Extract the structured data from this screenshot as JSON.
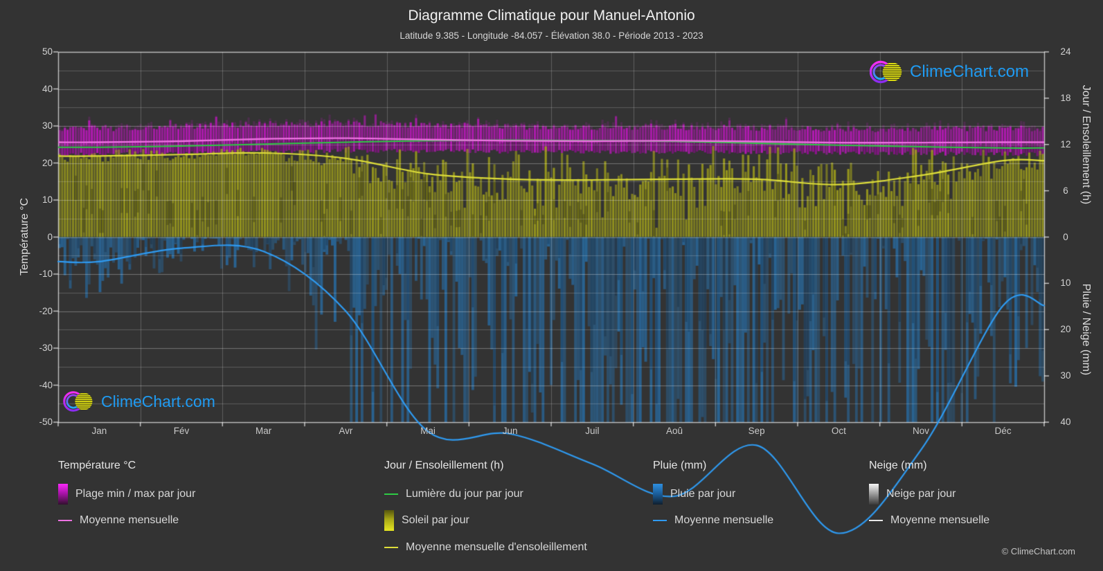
{
  "title": "Diagramme Climatique pour Manuel-Antonio",
  "subtitle": "Latitude 9.385 - Longitude -84.057 - Élévation 38.0 - Période 2013 - 2023",
  "branding": {
    "logo_text": "ClimeChart.com",
    "copyright": "© ClimeChart.com"
  },
  "axes": {
    "left": {
      "label": "Température °C",
      "ticks": [
        "50",
        "40",
        "30",
        "20",
        "10",
        "0",
        "-10",
        "-20",
        "-30",
        "-40",
        "-50"
      ]
    },
    "right_day": {
      "label": "Jour / Ensoleillement (h)",
      "ticks": [
        "24",
        "18",
        "12",
        "6",
        "0"
      ]
    },
    "right_precip": {
      "label": "Pluie / Neige (mm)",
      "ticks": [
        "10",
        "20",
        "30",
        "40"
      ]
    }
  },
  "months": [
    "Jan",
    "Fév",
    "Mar",
    "Avr",
    "Mai",
    "Jun",
    "Juil",
    "Aoû",
    "Sep",
    "Oct",
    "Nov",
    "Déc"
  ],
  "legend": {
    "temperature": {
      "header": "Température °C",
      "items": [
        {
          "swatch": "grad-magenta",
          "label": "Plage min / max par jour"
        },
        {
          "swatch": "line-magenta",
          "label": "Moyenne mensuelle"
        }
      ]
    },
    "day_sun": {
      "header": "Jour / Ensoleillement (h)",
      "items": [
        {
          "swatch": "line-green",
          "label": "Lumière du jour par jour"
        },
        {
          "swatch": "grad-yellow",
          "label": "Soleil par jour"
        },
        {
          "swatch": "line-yellow",
          "label": "Moyenne mensuelle d'ensoleillement"
        }
      ]
    },
    "rain": {
      "header": "Pluie (mm)",
      "items": [
        {
          "swatch": "grad-blue",
          "label": "Pluie par jour"
        },
        {
          "swatch": "line-blue",
          "label": "Moyenne mensuelle"
        }
      ]
    },
    "snow": {
      "header": "Neige (mm)",
      "items": [
        {
          "swatch": "grad-white",
          "label": "Neige par jour"
        },
        {
          "swatch": "line-white",
          "label": "Moyenne mensuelle"
        }
      ]
    }
  },
  "colors": {
    "background": "#333333",
    "temp_band": "#cd14cd",
    "temp_mean_line": "#ee72e2",
    "daylight_line": "#2ecc44",
    "sun_fill": "#a7a719",
    "sun_mean_line": "#dede3a",
    "rain_bar": "#2674b4",
    "rain_mean_line": "#2f9bf2",
    "snow_mean_line": "#e8e8e8",
    "logo_blue": "#1f9bf2",
    "grid": "#ffffff"
  },
  "chart_data": {
    "type": "area",
    "months": [
      "Jan",
      "Fév",
      "Mar",
      "Avr",
      "Mai",
      "Jun",
      "Juil",
      "Aoû",
      "Sep",
      "Oct",
      "Nov",
      "Déc"
    ],
    "y_left": {
      "label": "Température °C",
      "range": [
        -50,
        50
      ],
      "gridline_step_c": 5
    },
    "y_right_day_sun": {
      "label": "Jour / Ensoleillement (h)",
      "range_h": [
        0,
        24
      ]
    },
    "y_right_precip": {
      "label": "Pluie / Neige (mm)",
      "range_mm": [
        0,
        40
      ]
    },
    "series": [
      {
        "name": "Plage min / max par jour",
        "type": "band",
        "unit": "°C",
        "monthly_min": [
          22.3,
          22.5,
          22.9,
          23.3,
          23.3,
          23.1,
          23.0,
          23.0,
          22.9,
          22.7,
          22.6,
          22.4
        ],
        "monthly_max": [
          29.4,
          29.8,
          30.4,
          30.7,
          30.1,
          29.7,
          29.6,
          29.7,
          29.5,
          29.2,
          29.1,
          29.3
        ]
      },
      {
        "name": "Moyenne mensuelle (température)",
        "type": "line",
        "unit": "°C",
        "values": [
          25.6,
          25.9,
          26.5,
          26.7,
          26.3,
          26.0,
          25.9,
          26.0,
          25.8,
          25.5,
          25.5,
          25.6
        ]
      },
      {
        "name": "Lumière du jour par jour",
        "type": "line",
        "unit": "h",
        "values": [
          11.65,
          11.8,
          12.05,
          12.3,
          12.5,
          12.55,
          12.5,
          12.4,
          12.15,
          11.9,
          11.7,
          11.55
        ]
      },
      {
        "name": "Soleil par jour",
        "type": "bar",
        "unit": "h",
        "monthly_mean": [
          10.5,
          10.7,
          10.9,
          10.2,
          8.2,
          7.5,
          7.4,
          7.5,
          7.5,
          6.8,
          8.0,
          9.9
        ]
      },
      {
        "name": "Moyenne mensuelle d'ensoleillement",
        "type": "line",
        "unit": "h",
        "values": [
          10.5,
          10.7,
          10.9,
          10.2,
          8.2,
          7.5,
          7.4,
          7.5,
          7.5,
          6.8,
          8.0,
          9.9
        ]
      },
      {
        "name": "Pluie par jour",
        "type": "bar",
        "unit": "mm",
        "monthly_mean": [
          5.3,
          2.4,
          3.1,
          16,
          42,
          42.5,
          49,
          56,
          45,
          64,
          46,
          14.8
        ]
      },
      {
        "name": "Moyenne mensuelle (pluie)",
        "type": "line",
        "unit": "mm",
        "values": [
          5.3,
          2.4,
          3.1,
          16,
          42,
          42.5,
          49,
          56,
          45,
          64,
          46,
          14.8
        ]
      },
      {
        "name": "Neige par jour",
        "type": "bar",
        "unit": "mm",
        "monthly_mean": [
          0,
          0,
          0,
          0,
          0,
          0,
          0,
          0,
          0,
          0,
          0,
          0
        ]
      },
      {
        "name": "Moyenne mensuelle (neige)",
        "type": "line",
        "unit": "mm",
        "values": [
          0,
          0,
          0,
          0,
          0,
          0,
          0,
          0,
          0,
          0,
          0,
          0
        ]
      }
    ]
  }
}
